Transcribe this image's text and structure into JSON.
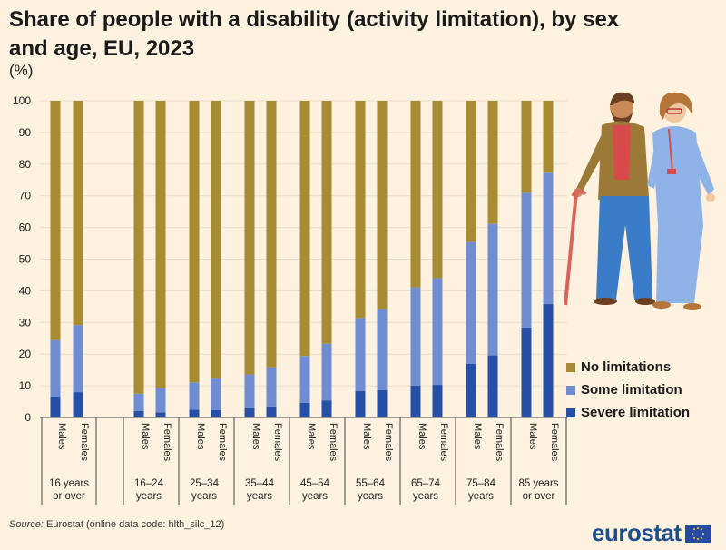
{
  "header": {
    "title": "Share of people with a disability (activity limitation), by sex and age, EU, 2023",
    "unit": "(%)"
  },
  "footer": {
    "source_label": "Source:",
    "source_text": "Eurostat (online data code: hlth_silc_12)",
    "logo_text": "eurostat"
  },
  "colors": {
    "no_limitations": "#a88c33",
    "some_limitation": "#6f8dd0",
    "severe_limitation": "#2550a6",
    "grid": "#e8dccb",
    "axis": "#444444"
  },
  "chart_data": {
    "type": "bar",
    "stacked": true,
    "title": "Share of people with a disability (activity limitation), by sex and age, EU, 2023",
    "ylabel": "(%)",
    "ylim": [
      0,
      100
    ],
    "yticks": [
      0,
      10,
      20,
      30,
      40,
      50,
      60,
      70,
      80,
      90,
      100
    ],
    "grid": true,
    "legend_position": "right",
    "groups": [
      {
        "label": "16 years or over",
        "categories": [
          "Males",
          "Females"
        ]
      },
      {
        "label": "16–24 years",
        "categories": [
          "Males",
          "Females"
        ]
      },
      {
        "label": "25–34 years",
        "categories": [
          "Males",
          "Females"
        ]
      },
      {
        "label": "35–44 years",
        "categories": [
          "Males",
          "Females"
        ]
      },
      {
        "label": "45–54 years",
        "categories": [
          "Males",
          "Females"
        ]
      },
      {
        "label": "55–64 years",
        "categories": [
          "Males",
          "Females"
        ]
      },
      {
        "label": "65–74 years",
        "categories": [
          "Males",
          "Females"
        ]
      },
      {
        "label": "75–84 years",
        "categories": [
          "Males",
          "Females"
        ]
      },
      {
        "label": "85 years or over",
        "categories": [
          "Males",
          "Females"
        ]
      }
    ],
    "series": [
      {
        "name": "Severe limitation",
        "values": [
          6.6,
          8.0,
          2.0,
          1.6,
          2.5,
          2.3,
          3.2,
          3.5,
          4.6,
          5.4,
          8.4,
          8.6,
          10.1,
          10.3,
          16.9,
          19.6,
          28.4,
          35.8
        ]
      },
      {
        "name": "Some limitation",
        "values": [
          17.8,
          21.2,
          5.5,
          7.7,
          8.6,
          10.0,
          10.4,
          12.3,
          14.8,
          17.9,
          23.0,
          25.6,
          31.0,
          33.7,
          38.5,
          41.5,
          42.6,
          41.5
        ]
      },
      {
        "name": "No limitations",
        "values": [
          75.6,
          70.8,
          92.5,
          90.7,
          88.9,
          87.7,
          86.4,
          84.2,
          80.6,
          76.7,
          68.6,
          65.8,
          58.9,
          56.0,
          44.6,
          38.9,
          29.0,
          22.7
        ]
      }
    ]
  }
}
